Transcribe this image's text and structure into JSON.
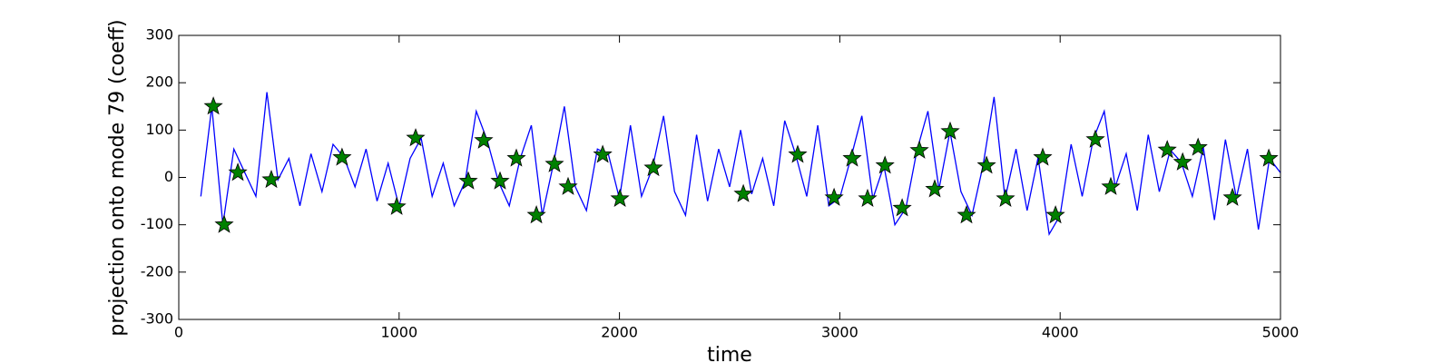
{
  "chart_data": {
    "type": "line",
    "xlabel": "time",
    "ylabel": "projection onto mode 79 (coeff)",
    "xlim": [
      0,
      5000
    ],
    "ylim": [
      -300,
      300
    ],
    "xticks": [
      0,
      1000,
      2000,
      3000,
      4000,
      5000
    ],
    "yticks": [
      -300,
      -200,
      -100,
      0,
      100,
      200,
      300
    ],
    "series": [
      {
        "style": "line",
        "color": "#0000ff",
        "x": [
          100,
          150,
          200,
          250,
          300,
          350,
          400,
          450,
          500,
          550,
          600,
          650,
          700,
          750,
          800,
          850,
          900,
          950,
          1000,
          1050,
          1100,
          1150,
          1200,
          1250,
          1300,
          1350,
          1400,
          1450,
          1500,
          1550,
          1600,
          1650,
          1700,
          1750,
          1800,
          1850,
          1900,
          1950,
          2000,
          2050,
          2100,
          2150,
          2200,
          2250,
          2300,
          2350,
          2400,
          2450,
          2500,
          2550,
          2600,
          2650,
          2700,
          2750,
          2800,
          2850,
          2900,
          2950,
          3000,
          3050,
          3100,
          3150,
          3200,
          3250,
          3300,
          3350,
          3400,
          3450,
          3500,
          3550,
          3600,
          3650,
          3700,
          3750,
          3800,
          3850,
          3900,
          3950,
          4000,
          4050,
          4100,
          4150,
          4200,
          4250,
          4300,
          4350,
          4400,
          4450,
          4500,
          4550,
          4600,
          4650,
          4700,
          4750,
          4800,
          4850,
          4900,
          4950,
          5000
        ],
        "values": [
          -40,
          150,
          -100,
          60,
          10,
          -40,
          180,
          -5,
          40,
          -60,
          50,
          -30,
          70,
          42,
          -20,
          60,
          -50,
          30,
          -62,
          40,
          83,
          -40,
          30,
          -60,
          -8,
          140,
          78,
          -8,
          -60,
          40,
          110,
          -80,
          28,
          150,
          -20,
          -70,
          60,
          48,
          -45,
          110,
          -40,
          20,
          130,
          -30,
          -80,
          90,
          -50,
          60,
          -20,
          100,
          -35,
          40,
          -60,
          120,
          48,
          -40,
          110,
          -60,
          -43,
          40,
          130,
          -45,
          25,
          -100,
          -65,
          57,
          140,
          -25,
          97,
          -30,
          -80,
          25,
          170,
          -45,
          60,
          -70,
          42,
          -120,
          -80,
          70,
          -40,
          80,
          140,
          -20,
          50,
          -70,
          90,
          -30,
          58,
          32,
          -40,
          63,
          -90,
          80,
          -43,
          60,
          -110,
          40,
          10
        ]
      },
      {
        "style": "star",
        "color": "#008000",
        "x": [
          157,
          206,
          268,
          420,
          741,
          989,
          1075,
          1314,
          1384,
          1458,
          1532,
          1623,
          1705,
          1767,
          1924,
          2002,
          2154,
          2562,
          2809,
          2974,
          3056,
          3126,
          3205,
          3283,
          3361,
          3431,
          3501,
          3575,
          3666,
          3752,
          3921,
          3979,
          4160,
          4230,
          4486,
          4556,
          4626,
          4782,
          4947
        ],
        "values": [
          150,
          -100,
          10,
          -5,
          42,
          -62,
          83,
          -8,
          78,
          -8,
          40,
          -80,
          28,
          -20,
          48,
          -45,
          20,
          -35,
          48,
          -43,
          40,
          -45,
          25,
          -65,
          57,
          -25,
          97,
          -80,
          25,
          -45,
          42,
          -80,
          80,
          -20,
          58,
          32,
          63,
          -43,
          40
        ]
      }
    ]
  }
}
